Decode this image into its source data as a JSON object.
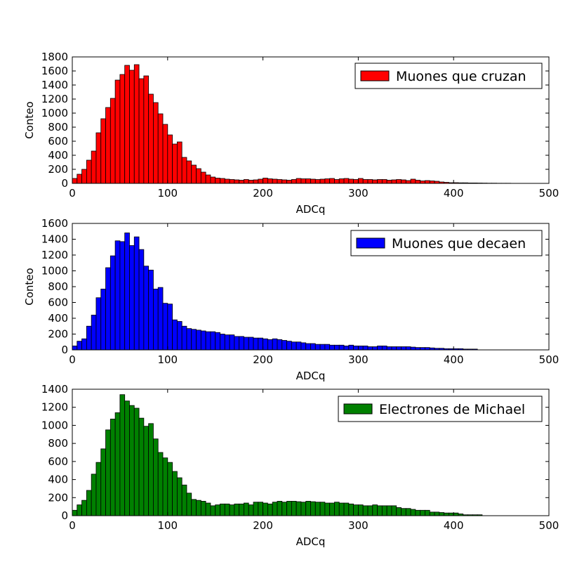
{
  "chart_data": [
    {
      "type": "bar",
      "bin_width": 5,
      "x": [
        0,
        5,
        10,
        15,
        20,
        25,
        30,
        35,
        40,
        45,
        50,
        55,
        60,
        65,
        70,
        75,
        80,
        85,
        90,
        95,
        100,
        105,
        110,
        115,
        120,
        125,
        130,
        135,
        140,
        145,
        150,
        155,
        160,
        165,
        170,
        175,
        180,
        185,
        190,
        195,
        200,
        205,
        210,
        215,
        220,
        225,
        230,
        235,
        240,
        245,
        250,
        255,
        260,
        265,
        270,
        275,
        280,
        285,
        290,
        295,
        300,
        305,
        310,
        315,
        320,
        325,
        330,
        335,
        340,
        345,
        350,
        355,
        360,
        365,
        370,
        375,
        380,
        385,
        390,
        395,
        400,
        405,
        410,
        415,
        420,
        425,
        430,
        435,
        440,
        445,
        450,
        455
      ],
      "values": [
        70,
        130,
        200,
        330,
        460,
        720,
        920,
        1080,
        1210,
        1470,
        1550,
        1680,
        1610,
        1690,
        1490,
        1530,
        1270,
        1150,
        990,
        840,
        690,
        560,
        590,
        370,
        320,
        260,
        210,
        160,
        120,
        90,
        75,
        70,
        60,
        55,
        50,
        45,
        55,
        45,
        50,
        60,
        75,
        65,
        60,
        55,
        50,
        45,
        55,
        70,
        65,
        65,
        60,
        55,
        60,
        65,
        70,
        55,
        65,
        70,
        60,
        55,
        70,
        55,
        55,
        50,
        55,
        55,
        45,
        50,
        55,
        50,
        40,
        60,
        45,
        35,
        40,
        35,
        30,
        20,
        15,
        10,
        10,
        8,
        8,
        6,
        6,
        5,
        4,
        3,
        3,
        2,
        2,
        2
      ],
      "color": "#ff0000",
      "series": [
        {
          "name": "Muones que cruzan"
        }
      ],
      "xlabel": "ADCq",
      "ylabel": "Conteo",
      "xlim": [
        0,
        500
      ],
      "ylim": [
        0,
        1800
      ],
      "xticks": [
        "0",
        "100",
        "200",
        "300",
        "400",
        "500"
      ],
      "yticks": [
        "0",
        "200",
        "400",
        "600",
        "800",
        "1000",
        "1200",
        "1400",
        "1600",
        "1800"
      ],
      "legend_position": "top-right",
      "grid": false
    },
    {
      "type": "bar",
      "bin_width": 5,
      "x": [
        0,
        5,
        10,
        15,
        20,
        25,
        30,
        35,
        40,
        45,
        50,
        55,
        60,
        65,
        70,
        75,
        80,
        85,
        90,
        95,
        100,
        105,
        110,
        115,
        120,
        125,
        130,
        135,
        140,
        145,
        150,
        155,
        160,
        165,
        170,
        175,
        180,
        185,
        190,
        195,
        200,
        205,
        210,
        215,
        220,
        225,
        230,
        235,
        240,
        245,
        250,
        255,
        260,
        265,
        270,
        275,
        280,
        285,
        290,
        295,
        300,
        305,
        310,
        315,
        320,
        325,
        330,
        335,
        340,
        345,
        350,
        355,
        360,
        365,
        370,
        375,
        380,
        385,
        390,
        395,
        400,
        405,
        410,
        415,
        420
      ],
      "values": [
        50,
        110,
        140,
        300,
        440,
        660,
        770,
        1040,
        1190,
        1380,
        1370,
        1480,
        1320,
        1430,
        1270,
        1060,
        1010,
        770,
        790,
        590,
        580,
        380,
        360,
        300,
        270,
        260,
        250,
        240,
        230,
        230,
        220,
        200,
        190,
        190,
        170,
        170,
        160,
        160,
        150,
        150,
        140,
        130,
        140,
        130,
        120,
        110,
        100,
        100,
        90,
        80,
        80,
        70,
        70,
        70,
        60,
        60,
        60,
        50,
        60,
        50,
        50,
        50,
        40,
        40,
        50,
        50,
        40,
        40,
        40,
        40,
        40,
        35,
        30,
        30,
        30,
        25,
        20,
        20,
        15,
        15,
        15,
        15,
        10,
        10,
        10
      ],
      "color": "#0000ff",
      "series": [
        {
          "name": "Muones que decaen"
        }
      ],
      "xlabel": "ADCq",
      "ylabel": "Conteo",
      "xlim": [
        0,
        500
      ],
      "ylim": [
        0,
        1600
      ],
      "xticks": [
        "0",
        "100",
        "200",
        "300",
        "400",
        "500"
      ],
      "yticks": [
        "0",
        "200",
        "400",
        "600",
        "800",
        "1000",
        "1200",
        "1400",
        "1600"
      ],
      "legend_position": "top-right",
      "grid": false
    },
    {
      "type": "bar",
      "bin_width": 5,
      "x": [
        0,
        5,
        10,
        15,
        20,
        25,
        30,
        35,
        40,
        45,
        50,
        55,
        60,
        65,
        70,
        75,
        80,
        85,
        90,
        95,
        100,
        105,
        110,
        115,
        120,
        125,
        130,
        135,
        140,
        145,
        150,
        155,
        160,
        165,
        170,
        175,
        180,
        185,
        190,
        195,
        200,
        205,
        210,
        215,
        220,
        225,
        230,
        235,
        240,
        245,
        250,
        255,
        260,
        265,
        270,
        275,
        280,
        285,
        290,
        295,
        300,
        305,
        310,
        315,
        320,
        325,
        330,
        335,
        340,
        345,
        350,
        355,
        360,
        365,
        370,
        375,
        380,
        385,
        390,
        395,
        400,
        405,
        410,
        415,
        420,
        425
      ],
      "values": [
        60,
        120,
        170,
        280,
        460,
        590,
        740,
        950,
        1070,
        1140,
        1340,
        1270,
        1220,
        1190,
        1080,
        990,
        1020,
        850,
        700,
        640,
        590,
        490,
        420,
        340,
        250,
        180,
        170,
        160,
        140,
        110,
        120,
        130,
        130,
        120,
        130,
        130,
        140,
        120,
        150,
        150,
        140,
        130,
        150,
        160,
        150,
        160,
        160,
        155,
        150,
        160,
        155,
        150,
        150,
        140,
        140,
        150,
        140,
        140,
        130,
        120,
        120,
        110,
        110,
        120,
        110,
        110,
        110,
        110,
        90,
        80,
        80,
        70,
        60,
        60,
        60,
        40,
        40,
        35,
        30,
        30,
        30,
        20,
        10,
        10,
        10,
        10
      ],
      "color": "#008000",
      "series": [
        {
          "name": "Electrones de Michael"
        }
      ],
      "xlabel": "ADCq",
      "ylabel": "",
      "xlim": [
        0,
        500
      ],
      "ylim": [
        0,
        1400
      ],
      "xticks": [
        "0",
        "100",
        "200",
        "300",
        "400",
        "500"
      ],
      "yticks": [
        "0",
        "200",
        "400",
        "600",
        "800",
        "1000",
        "1200",
        "1400"
      ],
      "legend_position": "top-right",
      "grid": false
    }
  ]
}
